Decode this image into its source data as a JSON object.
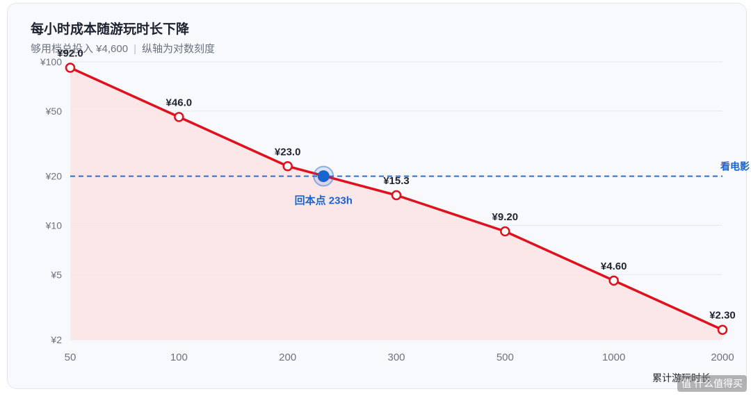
{
  "card": {
    "title": "每小时成本随游玩时长下降",
    "subtitle_text": "够用档总投入 ¥4,600",
    "subtitle_note": "纵轴为对数刻度",
    "xlabel": "累计游玩时长"
  },
  "watermark": "值 什么值得买",
  "colors": {
    "line": "#e0101c",
    "fill": "#fbe3e4",
    "reference": "#2f6fd0",
    "breakeven": "#1a64d0",
    "grid": "#e4e7ee",
    "axis_text": "#6b7280",
    "label_text": "#1f2430"
  },
  "chart_data": {
    "type": "line",
    "scale": "log",
    "title": "每小时成本随游玩时长下降",
    "xlabel": "累计游玩时长",
    "x_categories": [
      "50",
      "100",
      "200",
      "300",
      "500",
      "1000",
      "2000"
    ],
    "y_ticks": [
      100,
      50,
      20,
      10,
      5,
      2
    ],
    "y_tick_labels": [
      "¥100",
      "¥50",
      "¥20",
      "¥10",
      "¥5",
      "¥2"
    ],
    "ylim": [
      2,
      100
    ],
    "series": [
      {
        "x": [
          50,
          100,
          200,
          300,
          500,
          1000,
          2000
        ],
        "values": [
          92.0,
          46.0,
          23.0,
          15.3,
          9.2,
          4.6,
          2.3
        ],
        "labels": [
          "¥92.0",
          "¥46.0",
          "¥23.0",
          "¥15.3",
          "¥9.20",
          "¥4.60",
          "¥2.30"
        ]
      }
    ],
    "reference_line": {
      "y": 20,
      "label": "看电影"
    },
    "breakeven": {
      "x": 233,
      "y": 20,
      "label": "回本点 233h"
    },
    "grid": true
  }
}
